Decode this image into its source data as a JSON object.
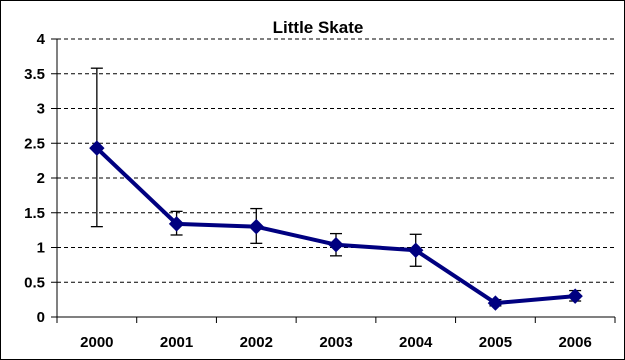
{
  "chart_data": {
    "type": "line",
    "title": "Little Skate",
    "xlabel": "",
    "ylabel": "",
    "categories": [
      "2000",
      "2001",
      "2002",
      "2003",
      "2004",
      "2005",
      "2006"
    ],
    "series": [
      {
        "values": [
          2.43,
          1.34,
          1.3,
          1.04,
          0.96,
          0.2,
          0.3
        ],
        "error_low": [
          1.3,
          1.18,
          1.06,
          0.88,
          0.73,
          0.16,
          0.23
        ],
        "error_high": [
          3.58,
          1.52,
          1.56,
          1.2,
          1.19,
          0.25,
          0.38
        ],
        "color": "#000080",
        "marker": "diamond"
      }
    ],
    "ylim": [
      0,
      4
    ],
    "yticks": [
      "0",
      "0.5",
      "1",
      "1.5",
      "2",
      "2.5",
      "3",
      "3.5",
      "4"
    ],
    "grid": "horizontal-dashed",
    "legend": "none"
  }
}
